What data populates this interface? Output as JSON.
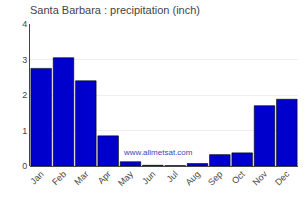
{
  "chart_data": {
    "type": "bar",
    "title": "Santa Barbara : precipitation (inch)",
    "categories": [
      "Jan",
      "Feb",
      "Mar",
      "Apr",
      "May",
      "Jun",
      "Jul",
      "Aug",
      "Sep",
      "Oct",
      "Nov",
      "Dec"
    ],
    "values": [
      2.75,
      3.05,
      2.4,
      0.85,
      0.12,
      0.02,
      0.01,
      0.07,
      0.32,
      0.37,
      1.7,
      1.88
    ],
    "color": "#0000cc",
    "ylim": [
      0,
      4
    ],
    "yticks": [
      0,
      1,
      2,
      3,
      4
    ],
    "grid": true,
    "annotations": [
      "www.allmetsat.com"
    ]
  }
}
